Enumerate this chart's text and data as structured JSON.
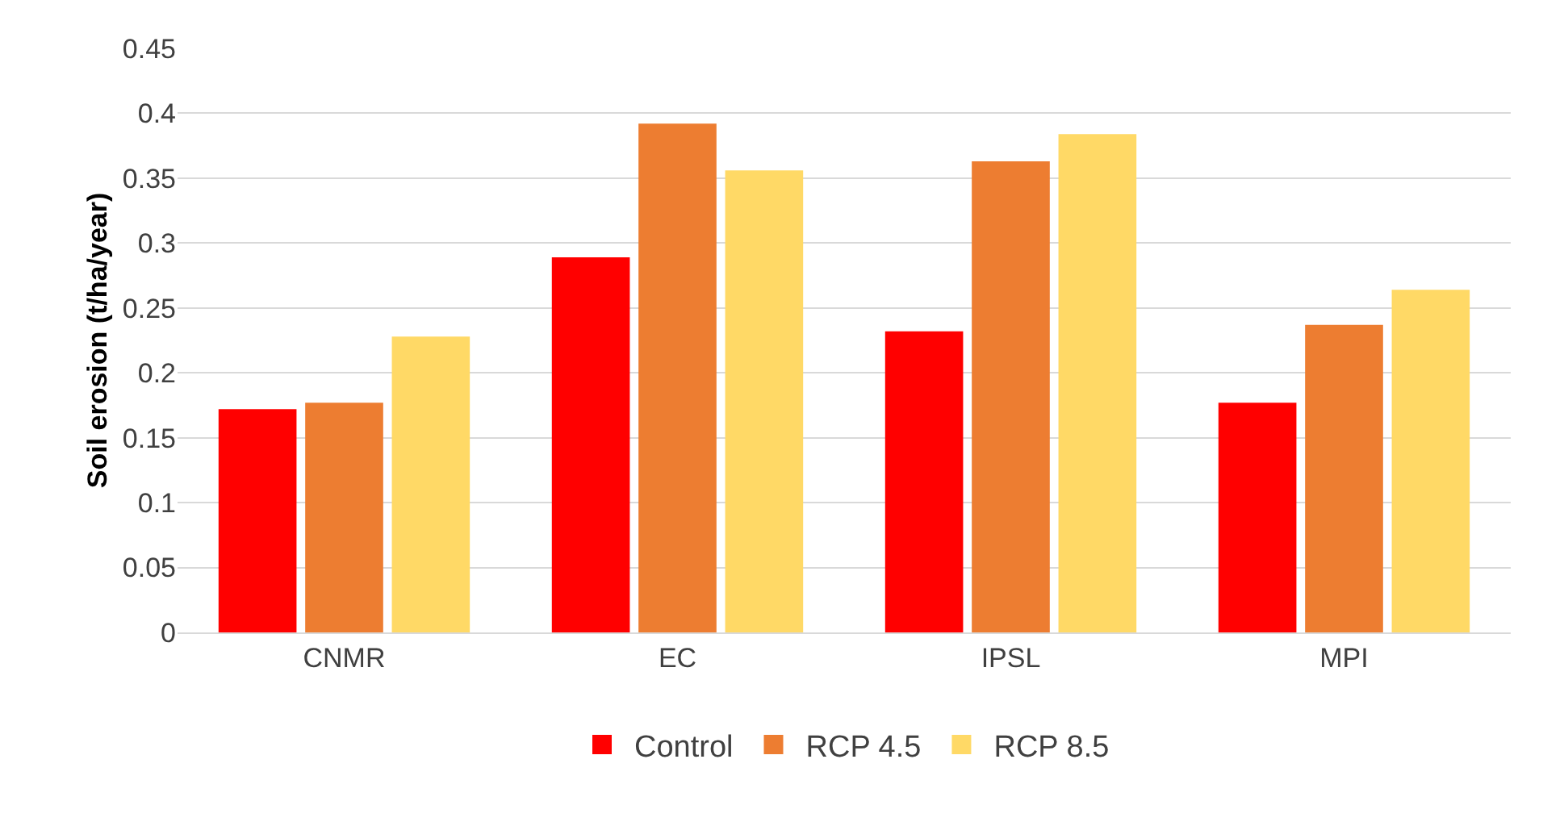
{
  "chart_data": {
    "type": "bar",
    "ylabel": "Soil erosion (t/ha/year)",
    "categories": [
      "CNMR",
      "EC",
      "IPSL",
      "MPI"
    ],
    "series": [
      {
        "name": "Control",
        "color": "#ff0000",
        "values": [
          0.172,
          0.289,
          0.232,
          0.177
        ]
      },
      {
        "name": "RCP 4.5",
        "color": "#ed7d31",
        "values": [
          0.177,
          0.392,
          0.363,
          0.237
        ]
      },
      {
        "name": "RCP 8.5",
        "color": "#ffd966",
        "values": [
          0.228,
          0.356,
          0.384,
          0.264
        ]
      }
    ],
    "ylim": [
      0,
      0.45
    ],
    "yticks": [
      0,
      0.05,
      0.1,
      0.15,
      0.2,
      0.25,
      0.3,
      0.35,
      0.4,
      0.45
    ],
    "grid": "y",
    "legend": "bottom"
  }
}
